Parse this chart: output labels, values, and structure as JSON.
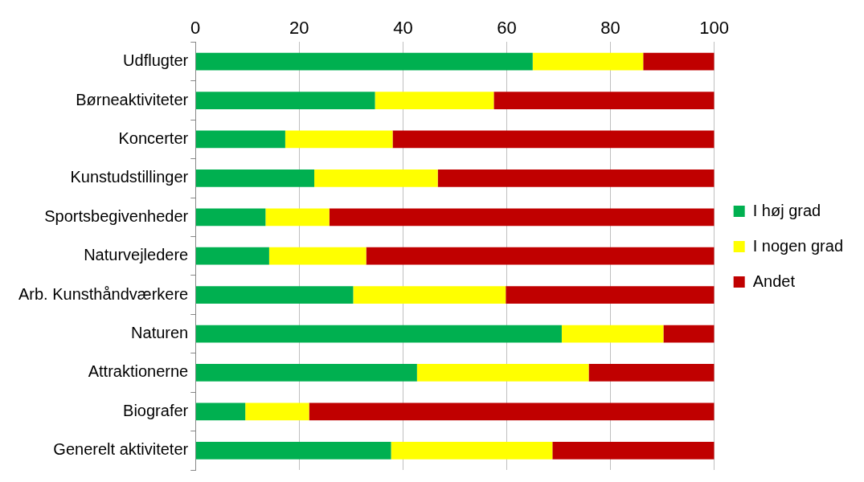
{
  "chart_data": {
    "type": "bar",
    "orientation": "horizontal",
    "stacked": true,
    "categories": [
      "Udflugter",
      "Børneaktiviteter",
      "Koncerter",
      "Kunstudstillinger",
      "Sportsbegivenheder",
      "Naturvejledere",
      "Arb. Kunsthåndværkere",
      "Naturen",
      "Attraktionerne",
      "Biografer",
      "Generelt aktiviteter"
    ],
    "series": [
      {
        "name": "I høj grad",
        "color": "#00b050",
        "values": [
          65,
          34.6,
          17.3,
          22.9,
          13.5,
          14.2,
          30.4,
          70.6,
          42.7,
          9.6,
          37.7
        ]
      },
      {
        "name": "I nogen grad",
        "color": "#ffff00",
        "values": [
          21.3,
          22.9,
          20.7,
          23.8,
          12.3,
          18.7,
          29.4,
          19.6,
          33.1,
          12.3,
          31.1
        ]
      },
      {
        "name": "Andet",
        "color": "#c00000",
        "values": [
          13.7,
          42.5,
          62,
          53.3,
          74.2,
          67.1,
          40.2,
          9.8,
          24.2,
          78.1,
          31.2
        ]
      }
    ],
    "xlim": [
      0,
      100
    ],
    "xticks": [
      0,
      20,
      40,
      60,
      80,
      100
    ],
    "grid": "x",
    "legend": "right"
  }
}
